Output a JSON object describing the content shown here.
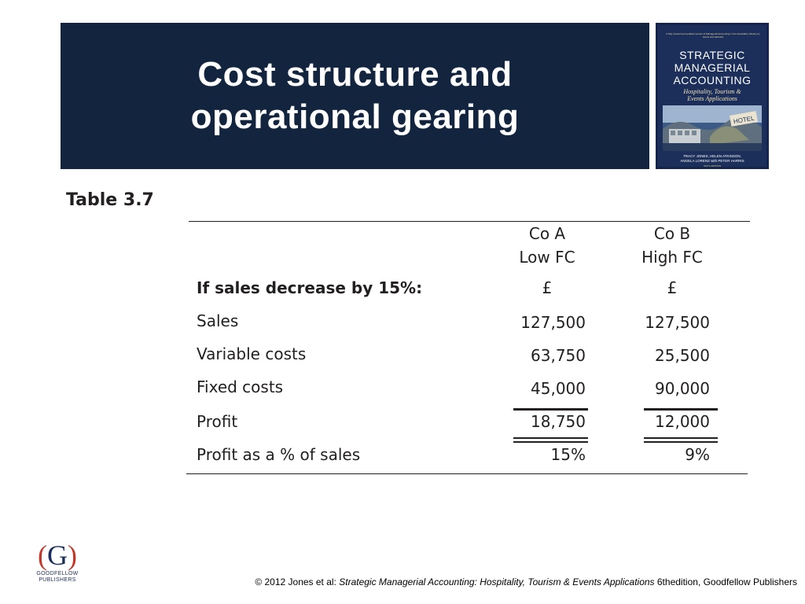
{
  "slide": {
    "title_line1": "Cost structure and",
    "title_line2": "operational gearing"
  },
  "book_cover": {
    "blurb": "A fully revised and updated version of Managerial Accounting in the Hospitality Industry by Harris and Hazzard",
    "title_line1": "STRATEGIC",
    "title_line2": "MANAGERIAL",
    "title_line3": "ACCOUNTING",
    "subtitle_line1": "Hospitality, Tourism &",
    "subtitle_line2": "Events Applications",
    "hotel_sign": "HOTEL",
    "authors_line1": "TRACY JONES, HELEN ATKINSON,",
    "authors_line2": "ANGELA LORENZ with PETER HARRIS",
    "edition": "SIXTH EDITION",
    "publisher_mark": "G"
  },
  "table": {
    "label": "Table 3.7",
    "col_a_line1": "Co A",
    "col_a_line2": "Low FC",
    "col_b_line1": "Co B",
    "col_b_line2": "High FC",
    "scenario_label": "If sales decrease by 15%:",
    "currency_a": "£",
    "currency_b": "£",
    "rows": [
      {
        "label": "Sales",
        "a": "127,500",
        "b": "127,500"
      },
      {
        "label": "Variable costs",
        "a": "63,750",
        "b": "25,500"
      },
      {
        "label": "Fixed costs",
        "a": "45,000",
        "b": "90,000"
      },
      {
        "label": "Profit",
        "a": "18,750",
        "b": "12,000"
      },
      {
        "label": "Profit as a % of sales",
        "a": "15%",
        "b": "9%"
      }
    ]
  },
  "logo": {
    "letter": "G",
    "paren_open": "(",
    "paren_close": ")",
    "line1": "GOODFELLOW",
    "line2": "PUBLISHERS"
  },
  "footer": {
    "prefix": "© 2012 Jones et al: ",
    "book_title": "Strategic Managerial Accounting: Hospitality, Tourism & Events Applications",
    "suffix": " 6thedition, Goodfellow Publishers"
  },
  "colors": {
    "title_band": "#13243f",
    "book_cover": "#1c2f5a",
    "logo_red": "#c0392b"
  }
}
